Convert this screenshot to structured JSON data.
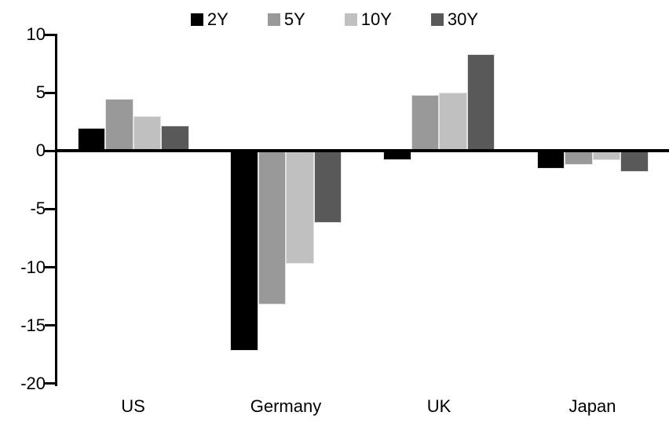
{
  "chart_data": {
    "type": "bar",
    "title": "",
    "categories": [
      "US",
      "Germany",
      "UK",
      "Japan"
    ],
    "series": [
      {
        "name": "2Y",
        "color": "#000000",
        "values": [
          2.0,
          -17.2,
          -0.8,
          -1.5
        ]
      },
      {
        "name": "5Y",
        "color": "#999999",
        "values": [
          4.5,
          -13.2,
          4.8,
          -1.2
        ]
      },
      {
        "name": "10Y",
        "color": "#c0c0c0",
        "values": [
          3.0,
          -9.7,
          5.0,
          -0.8
        ]
      },
      {
        "name": "30Y",
        "color": "#595959",
        "values": [
          2.2,
          -6.2,
          8.3,
          -1.8
        ]
      }
    ],
    "xlabel": "",
    "ylabel": "",
    "ylim": [
      -20,
      10
    ],
    "yticks": [
      10,
      5,
      0,
      -5,
      -10,
      -15,
      -20
    ],
    "grid": false,
    "legend_position": "top-center",
    "axis_color": "#000000",
    "background": "#ffffff"
  }
}
